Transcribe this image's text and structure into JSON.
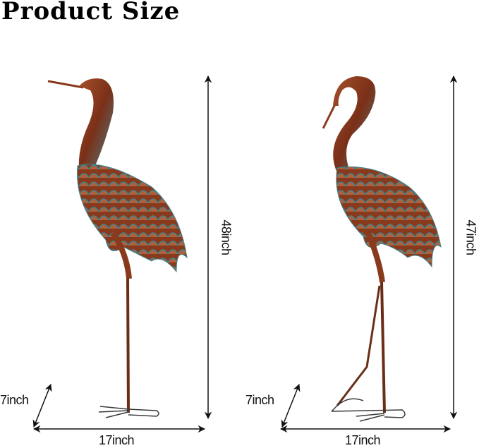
{
  "title": "Product Size",
  "left_crane": {
    "height": "48inch",
    "width": "17inch",
    "depth": "7inch"
  },
  "right_crane": {
    "height": "47inch",
    "width": "17inch",
    "depth": "7inch"
  },
  "colors": {
    "copper": "#8a3a1c",
    "patina": "#3f8590",
    "arrow": "#111111"
  }
}
